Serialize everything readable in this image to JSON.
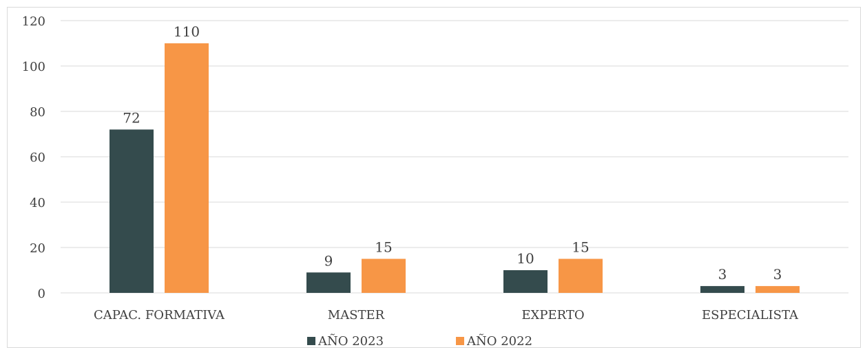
{
  "chart_data": {
    "type": "bar",
    "title": "",
    "xlabel": "",
    "ylabel": "",
    "ylim": [
      0,
      120
    ],
    "yticks": [
      0,
      20,
      40,
      60,
      80,
      100,
      120
    ],
    "grid": true,
    "legend_position": "bottom",
    "categories": [
      "CAPAC. FORMATIVA",
      "MASTER",
      "EXPERTO",
      "ESPECIALISTA"
    ],
    "series": [
      {
        "name": "AÑO 2023",
        "color": "#344b4d",
        "values": [
          72,
          9,
          10,
          3
        ]
      },
      {
        "name": "AÑO 2022",
        "color": "#f79646",
        "values": [
          110,
          15,
          15,
          3
        ]
      }
    ]
  }
}
